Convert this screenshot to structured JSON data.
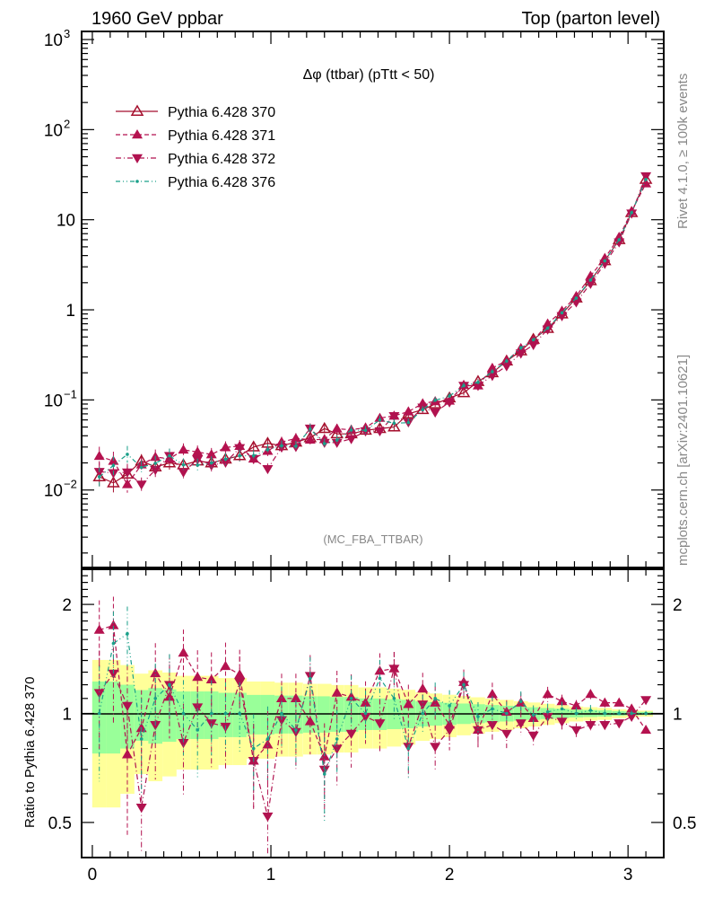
{
  "header": {
    "left": "1960 GeV ppbar",
    "right": "Top (parton level)"
  },
  "side": {
    "rivet": "Rivet 4.1.0, ≥ 100k events",
    "mcplots": "mcplots.cern.ch [arXiv:2401.10621]"
  },
  "analysis_tag": "(MC_FBA_TTBAR)",
  "colors": {
    "s370": "#a50f2d",
    "s371": "#b5124f",
    "s372": "#b0124f",
    "s376": "#1aa08a",
    "band_outer": "#ffff99",
    "band_inner": "#99ff99"
  },
  "chart_data": [
    {
      "type": "line",
      "title": "Δφ (ttbar) (pTtt < 50)",
      "xlabel": "",
      "ylabel": "",
      "xlim": [
        -0.06,
        3.2
      ],
      "ylim": [
        0.00138,
        1230
      ],
      "yscale": "log",
      "legend_position": "top-left",
      "x_ticks": [
        "0",
        "1",
        "2",
        "3"
      ],
      "y_ticks": [
        {
          "base": "10",
          "exp": "3"
        },
        {
          "base": "10",
          "exp": "2"
        },
        {
          "base": "10",
          "exp": ""
        },
        {
          "base": "1",
          "exp": ""
        },
        {
          "base": "10",
          "exp": "−1"
        },
        {
          "base": "10",
          "exp": "−2"
        }
      ],
      "x": [
        0.039,
        0.118,
        0.196,
        0.275,
        0.353,
        0.432,
        0.51,
        0.589,
        0.667,
        0.746,
        0.825,
        0.903,
        0.982,
        1.06,
        1.14,
        1.22,
        1.3,
        1.37,
        1.45,
        1.53,
        1.61,
        1.69,
        1.77,
        1.85,
        1.92,
        2.0,
        2.08,
        2.16,
        2.24,
        2.32,
        2.4,
        2.47,
        2.55,
        2.63,
        2.71,
        2.79,
        2.87,
        2.95,
        3.02,
        3.1
      ],
      "series": [
        {
          "name": "Pythia 6.428 370",
          "key": "s370",
          "values": [
            0.014,
            0.012,
            0.015,
            0.021,
            0.018,
            0.02,
            0.019,
            0.021,
            0.02,
            0.022,
            0.024,
            0.03,
            0.033,
            0.031,
            0.034,
            0.038,
            0.048,
            0.042,
            0.042,
            0.046,
            0.048,
            0.05,
            0.07,
            0.078,
            0.09,
            0.105,
            0.12,
            0.16,
            0.2,
            0.27,
            0.35,
            0.47,
            0.62,
            0.9,
            1.35,
            2.1,
            3.5,
            6.0,
            12,
            28
          ]
        }
      ]
    },
    {
      "type": "line",
      "ylabel": "Ratio to Pythia 6.428 370",
      "xlim": [
        -0.06,
        3.2
      ],
      "ylim": [
        0.4,
        2.5
      ],
      "yscale": "log",
      "y_ticks": [
        "2",
        "1",
        "0.5"
      ],
      "reference": "Pythia 6.428 370",
      "band_outer_relerr": [
        0.45,
        0.45,
        0.4,
        0.32,
        0.35,
        0.33,
        0.3,
        0.3,
        0.3,
        0.28,
        0.28,
        0.25,
        0.25,
        0.24,
        0.24,
        0.23,
        0.23,
        0.22,
        0.22,
        0.2,
        0.2,
        0.19,
        0.18,
        0.16,
        0.15,
        0.14,
        0.13,
        0.12,
        0.11,
        0.1,
        0.09,
        0.08,
        0.07,
        0.06,
        0.05,
        0.045,
        0.04,
        0.03,
        0.025,
        0.02
      ],
      "series": [
        {
          "name": "Pythia 6.428 371",
          "key": "s371",
          "ratio": [
            1.7,
            1.75,
            0.77,
            0.91,
            1.29,
            1.11,
            1.47,
            1.26,
            1.24,
            1.35,
            1.28,
            0.74,
            0.82,
            1.1,
            1.1,
            0.95,
            0.76,
            1.14,
            1.11,
            1.07,
            1.31,
            1.33,
            1.06,
            1.17,
            1.07,
            0.93,
            1.22,
            0.9,
            1.13,
            1.01,
            1.07,
            0.97,
            1.13,
            1.08,
            1.05,
            1.13,
            1.07,
            1.07,
            1.03,
            0.9
          ]
        },
        {
          "name": "Pythia 6.428 372",
          "key": "s372",
          "ratio": [
            1.14,
            1.29,
            1.05,
            0.55,
            0.93,
            1.2,
            0.83,
            1.04,
            0.94,
            0.92,
            1.22,
            0.74,
            0.52,
            0.96,
            0.89,
            1.27,
            0.7,
            0.8,
            0.88,
            0.98,
            0.94,
            1.33,
            0.81,
            1.06,
            0.81,
            0.9,
            1.2,
            0.9,
            0.93,
            0.88,
            0.94,
            0.87,
            0.98,
            0.95,
            0.9,
            0.93,
            0.93,
            0.94,
            0.98,
            1.09
          ]
        },
        {
          "name": "Pythia 6.428 376",
          "key": "s376",
          "ratio": [
            1.0,
            1.56,
            1.66,
            0.85,
            1.1,
            1.2,
            1.0,
            0.9,
            1.0,
            1.0,
            1.0,
            0.8,
            0.85,
            1.0,
            0.9,
            1.25,
            0.68,
            0.85,
            1.1,
            1.0,
            1.25,
            1.1,
            0.8,
            1.0,
            1.1,
            1.05,
            1.2,
            0.98,
            1.03,
            1.0,
            1.08,
            0.99,
            1.01,
            1.03,
            1.0,
            1.02,
            1.0,
            1.0,
            1.0,
            1.0
          ]
        }
      ]
    }
  ]
}
